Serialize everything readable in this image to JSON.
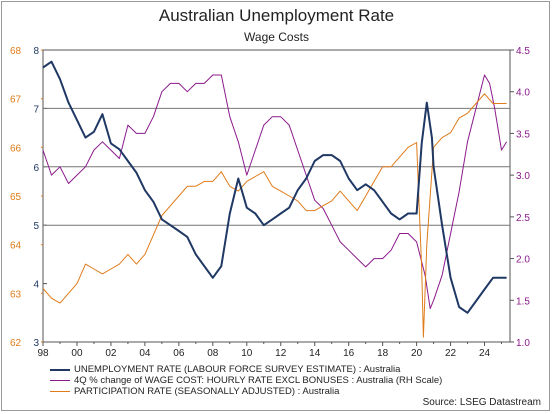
{
  "chart_data": {
    "type": "line",
    "title": "Australian Unemployment Rate",
    "subtitle": "Wage Costs",
    "source": "Source: LSEG Datastream",
    "x_tick_labels": [
      "98",
      "00",
      "02",
      "04",
      "06",
      "08",
      "10",
      "12",
      "14",
      "16",
      "18",
      "20",
      "22",
      "24"
    ],
    "x_ticks": [
      1998,
      2000,
      2002,
      2004,
      2006,
      2008,
      2010,
      2012,
      2014,
      2016,
      2018,
      2020,
      2022,
      2024
    ],
    "xlim": [
      1998,
      2025.5
    ],
    "left_axis_unemp": {
      "ylim": [
        3,
        8
      ],
      "ticks": [
        3,
        4,
        5,
        6,
        7,
        8
      ],
      "color": "#1f3864"
    },
    "left_axis_participation": {
      "ylim": [
        62,
        68
      ],
      "ticks": [
        62,
        63,
        64,
        65,
        66,
        67,
        68
      ],
      "color": "#e07b1a"
    },
    "right_axis": {
      "ylim": [
        1.0,
        4.5
      ],
      "ticks": [
        "1.0",
        "1.5",
        "2.0",
        "2.5",
        "3.0",
        "3.5",
        "4.0",
        "4.5"
      ],
      "color": "#8b1a8b"
    },
    "reference_lines_unemp": [
      7.0,
      6.0,
      5.0
    ],
    "grid": false,
    "legend_position": "bottom-left",
    "series": [
      {
        "name": "UNEMPLOYMENT RATE (LABOUR FORCE SURVEY ESTIMATE) : Australia",
        "axis": "left_unemp",
        "color": "#1f3864",
        "points": [
          [
            1998,
            7.7
          ],
          [
            1998.5,
            7.8
          ],
          [
            1999,
            7.5
          ],
          [
            1999.5,
            7.1
          ],
          [
            2000,
            6.8
          ],
          [
            2000.5,
            6.5
          ],
          [
            2001,
            6.6
          ],
          [
            2001.5,
            6.9
          ],
          [
            2002,
            6.4
          ],
          [
            2002.5,
            6.3
          ],
          [
            2003,
            6.1
          ],
          [
            2003.5,
            5.9
          ],
          [
            2004,
            5.6
          ],
          [
            2004.5,
            5.4
          ],
          [
            2005,
            5.1
          ],
          [
            2005.5,
            5.0
          ],
          [
            2006,
            4.9
          ],
          [
            2006.5,
            4.8
          ],
          [
            2007,
            4.5
          ],
          [
            2007.5,
            4.3
          ],
          [
            2008,
            4.1
          ],
          [
            2008.5,
            4.3
          ],
          [
            2009,
            5.2
          ],
          [
            2009.5,
            5.8
          ],
          [
            2010,
            5.3
          ],
          [
            2010.5,
            5.2
          ],
          [
            2011,
            5.0
          ],
          [
            2011.5,
            5.1
          ],
          [
            2012,
            5.2
          ],
          [
            2012.5,
            5.3
          ],
          [
            2013,
            5.6
          ],
          [
            2013.5,
            5.8
          ],
          [
            2014,
            6.1
          ],
          [
            2014.5,
            6.2
          ],
          [
            2015,
            6.2
          ],
          [
            2015.5,
            6.1
          ],
          [
            2016,
            5.8
          ],
          [
            2016.5,
            5.6
          ],
          [
            2017,
            5.7
          ],
          [
            2017.5,
            5.6
          ],
          [
            2018,
            5.4
          ],
          [
            2018.5,
            5.2
          ],
          [
            2019,
            5.1
          ],
          [
            2019.5,
            5.2
          ],
          [
            2020,
            5.2
          ],
          [
            2020.3,
            6.4
          ],
          [
            2020.6,
            7.1
          ],
          [
            2020.9,
            6.5
          ],
          [
            2021,
            6.0
          ],
          [
            2021.5,
            5.0
          ],
          [
            2022,
            4.1
          ],
          [
            2022.5,
            3.6
          ],
          [
            2023,
            3.5
          ],
          [
            2023.5,
            3.7
          ],
          [
            2024,
            3.9
          ],
          [
            2024.5,
            4.1
          ],
          [
            2025,
            4.1
          ],
          [
            2025.3,
            4.1
          ]
        ]
      },
      {
        "name": "4Q % change of WAGE COST: HOURLY RATE EXCL BONUSES : Australia (RH Scale)",
        "axis": "right",
        "color": "#8b1a8b",
        "points": [
          [
            1998,
            3.3
          ],
          [
            1998.5,
            3.0
          ],
          [
            1999,
            3.1
          ],
          [
            1999.5,
            2.9
          ],
          [
            2000,
            3.0
          ],
          [
            2000.5,
            3.1
          ],
          [
            2001,
            3.3
          ],
          [
            2001.5,
            3.4
          ],
          [
            2002,
            3.3
          ],
          [
            2002.5,
            3.2
          ],
          [
            2003,
            3.6
          ],
          [
            2003.5,
            3.5
          ],
          [
            2004,
            3.5
          ],
          [
            2004.5,
            3.7
          ],
          [
            2005,
            4.0
          ],
          [
            2005.5,
            4.1
          ],
          [
            2006,
            4.1
          ],
          [
            2006.5,
            4.0
          ],
          [
            2007,
            4.1
          ],
          [
            2007.5,
            4.1
          ],
          [
            2008,
            4.2
          ],
          [
            2008.5,
            4.2
          ],
          [
            2009,
            3.7
          ],
          [
            2009.5,
            3.4
          ],
          [
            2010,
            3.0
          ],
          [
            2010.5,
            3.3
          ],
          [
            2011,
            3.6
          ],
          [
            2011.5,
            3.7
          ],
          [
            2012,
            3.7
          ],
          [
            2012.5,
            3.6
          ],
          [
            2013,
            3.3
          ],
          [
            2013.5,
            3.0
          ],
          [
            2014,
            2.7
          ],
          [
            2014.5,
            2.6
          ],
          [
            2015,
            2.4
          ],
          [
            2015.5,
            2.2
          ],
          [
            2016,
            2.1
          ],
          [
            2016.5,
            2.0
          ],
          [
            2017,
            1.9
          ],
          [
            2017.5,
            2.0
          ],
          [
            2018,
            2.0
          ],
          [
            2018.5,
            2.1
          ],
          [
            2019,
            2.3
          ],
          [
            2019.5,
            2.3
          ],
          [
            2020,
            2.2
          ],
          [
            2020.5,
            1.8
          ],
          [
            2020.8,
            1.4
          ],
          [
            2021,
            1.5
          ],
          [
            2021.5,
            1.8
          ],
          [
            2022,
            2.3
          ],
          [
            2022.5,
            2.8
          ],
          [
            2023,
            3.4
          ],
          [
            2023.5,
            3.8
          ],
          [
            2024,
            4.2
          ],
          [
            2024.3,
            4.1
          ],
          [
            2024.6,
            3.8
          ],
          [
            2025,
            3.3
          ],
          [
            2025.3,
            3.4
          ]
        ]
      },
      {
        "name": "PARTICIPATION RATE (SEASONALLY ADJUSTED) : Australia",
        "axis": "left_participation",
        "color": "#e07b1a",
        "points": [
          [
            1998,
            63.1
          ],
          [
            1998.5,
            62.9
          ],
          [
            1999,
            62.8
          ],
          [
            1999.5,
            63.0
          ],
          [
            2000,
            63.2
          ],
          [
            2000.5,
            63.6
          ],
          [
            2001,
            63.5
          ],
          [
            2001.5,
            63.4
          ],
          [
            2002,
            63.5
          ],
          [
            2002.5,
            63.6
          ],
          [
            2003,
            63.8
          ],
          [
            2003.5,
            63.6
          ],
          [
            2004,
            63.8
          ],
          [
            2004.5,
            64.2
          ],
          [
            2005,
            64.6
          ],
          [
            2005.5,
            64.8
          ],
          [
            2006,
            65.0
          ],
          [
            2006.5,
            65.2
          ],
          [
            2007,
            65.2
          ],
          [
            2007.5,
            65.3
          ],
          [
            2008,
            65.3
          ],
          [
            2008.5,
            65.5
          ],
          [
            2009,
            65.2
          ],
          [
            2009.5,
            65.1
          ],
          [
            2010,
            65.3
          ],
          [
            2010.5,
            65.4
          ],
          [
            2011,
            65.5
          ],
          [
            2011.5,
            65.2
          ],
          [
            2012,
            65.1
          ],
          [
            2012.5,
            65.0
          ],
          [
            2013,
            64.9
          ],
          [
            2013.5,
            64.7
          ],
          [
            2014,
            64.7
          ],
          [
            2014.5,
            64.8
          ],
          [
            2015,
            64.9
          ],
          [
            2015.5,
            65.1
          ],
          [
            2016,
            64.9
          ],
          [
            2016.5,
            64.7
          ],
          [
            2017,
            65.0
          ],
          [
            2017.5,
            65.3
          ],
          [
            2018,
            65.6
          ],
          [
            2018.5,
            65.6
          ],
          [
            2019,
            65.8
          ],
          [
            2019.5,
            66.0
          ],
          [
            2020,
            66.1
          ],
          [
            2020.3,
            63.5
          ],
          [
            2020.4,
            62.1
          ],
          [
            2020.6,
            64.0
          ],
          [
            2021,
            66.0
          ],
          [
            2021.5,
            66.2
          ],
          [
            2022,
            66.3
          ],
          [
            2022.5,
            66.6
          ],
          [
            2023,
            66.7
          ],
          [
            2023.5,
            66.9
          ],
          [
            2024,
            67.1
          ],
          [
            2024.5,
            66.9
          ],
          [
            2025,
            66.9
          ],
          [
            2025.3,
            66.9
          ]
        ]
      }
    ]
  }
}
